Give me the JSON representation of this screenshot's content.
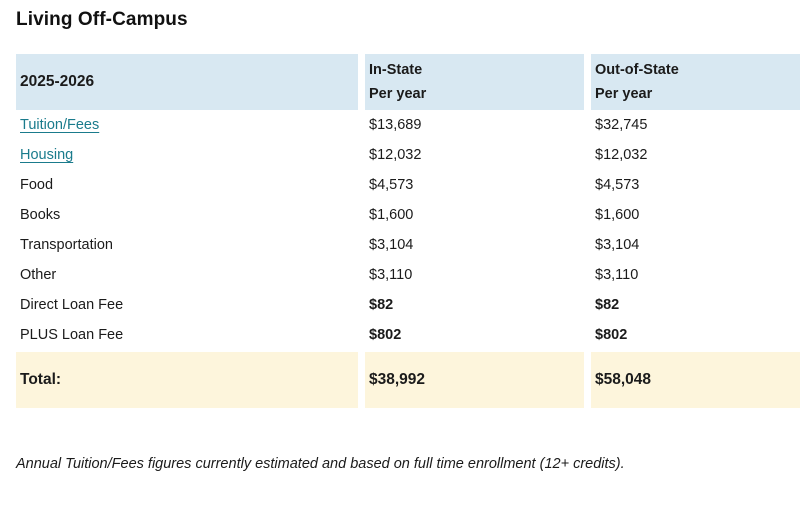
{
  "page": {
    "title": "Living Off-Campus",
    "footnote": "Annual Tuition/Fees figures currently estimated and based on full time enrollment (12+ credits)."
  },
  "table": {
    "header": {
      "year": "2025-2026",
      "in_state_line1": "In-State",
      "in_state_line2": "Per year",
      "out_of_state_line1": "Out-of-State",
      "out_of_state_line2": "Per year"
    },
    "rows": [
      {
        "label": "Tuition/Fees",
        "is_link": true,
        "bold_values": false,
        "in_state": "$13,689",
        "out_of_state": "$32,745"
      },
      {
        "label": "Housing",
        "is_link": true,
        "bold_values": false,
        "in_state": "$12,032",
        "out_of_state": "$12,032"
      },
      {
        "label": "Food",
        "is_link": false,
        "bold_values": false,
        "in_state": "$4,573",
        "out_of_state": "$4,573"
      },
      {
        "label": "Books",
        "is_link": false,
        "bold_values": false,
        "in_state": "$1,600",
        "out_of_state": "$1,600"
      },
      {
        "label": "Transportation",
        "is_link": false,
        "bold_values": false,
        "in_state": "$3,104",
        "out_of_state": "$3,104"
      },
      {
        "label": "Other",
        "is_link": false,
        "bold_values": false,
        "in_state": "$3,110",
        "out_of_state": "$3,110"
      },
      {
        "label": "Direct Loan Fee",
        "is_link": false,
        "bold_values": true,
        "in_state": "$82",
        "out_of_state": "$82"
      },
      {
        "label": "PLUS Loan Fee",
        "is_link": false,
        "bold_values": true,
        "in_state": "$802",
        "out_of_state": "$802"
      }
    ],
    "total": {
      "label": "Total:",
      "in_state": "$38,992",
      "out_of_state": "$58,048"
    }
  },
  "colors": {
    "header_bg": "#d8e8f2",
    "total_bg": "#fdf5dc",
    "link": "#1a7b8c",
    "text": "#1b1b1b"
  }
}
